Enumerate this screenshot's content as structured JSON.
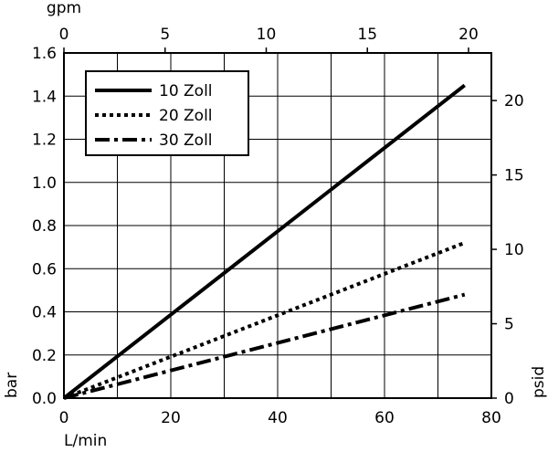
{
  "chart_data": {
    "type": "line",
    "x": [
      0,
      75
    ],
    "series": [
      {
        "name": "10 Zoll",
        "style": "solid",
        "values": [
          0.0,
          1.45
        ]
      },
      {
        "name": "20 Zoll",
        "style": "dotted",
        "values": [
          0.0,
          0.72
        ]
      },
      {
        "name": "30 Zoll",
        "style": "dash-dot",
        "values": [
          0.0,
          0.48
        ]
      }
    ],
    "xlabel": "L/min",
    "xlim": [
      0,
      80
    ],
    "xticks": [
      "0",
      "20",
      "40",
      "60",
      "80"
    ],
    "ylabel": "bar",
    "ylim": [
      0,
      1.6
    ],
    "yticks": [
      "0.0",
      "0.2",
      "0.4",
      "0.6",
      "0.8",
      "1.0",
      "1.2",
      "1.4",
      "1.6"
    ],
    "x2label": "gpm",
    "x2lim": [
      0,
      21.13
    ],
    "x2ticks": [
      "0",
      "5",
      "10",
      "15",
      "20"
    ],
    "y2label": "psid",
    "y2lim": [
      0,
      23.2
    ],
    "y2ticks": [
      "0",
      "5",
      "10",
      "15",
      "20"
    ],
    "grid": true,
    "legend_position": "top-left",
    "color": "#000000"
  }
}
